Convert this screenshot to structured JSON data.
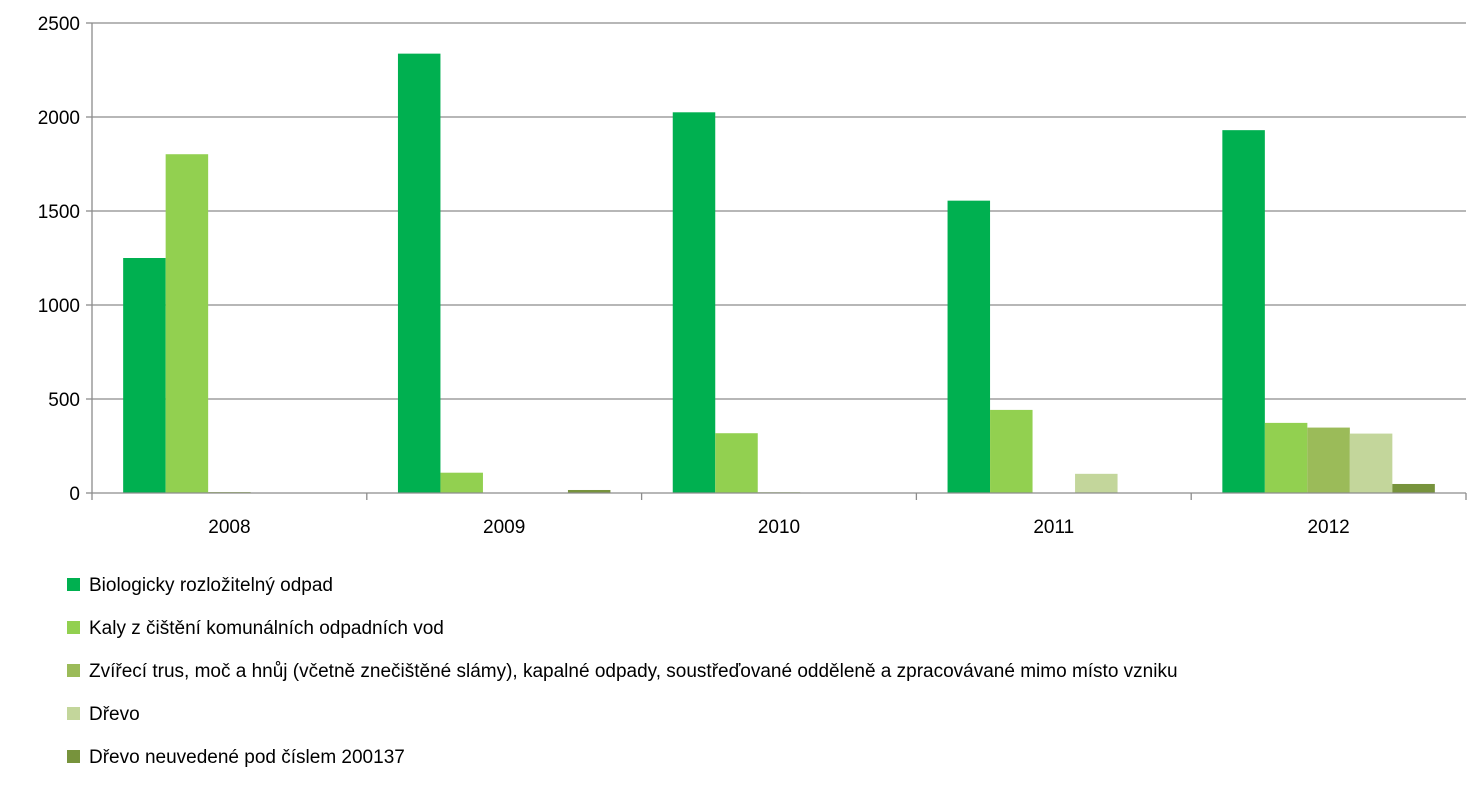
{
  "chart_data": {
    "type": "bar",
    "categories": [
      "2008",
      "2009",
      "2010",
      "2011",
      "2012"
    ],
    "series": [
      {
        "name": "Biologicky rozložitelný odpad",
        "color": "#00b050",
        "values": [
          1250,
          2337,
          2025,
          1555,
          1930
        ]
      },
      {
        "name": "Kaly z čištění komunálních odpadních vod",
        "color": "#92d050",
        "values": [
          1802,
          108,
          318,
          442,
          373
        ]
      },
      {
        "name": "Zvířecí trus, moč a hnůj (včetně znečištěné slámy), kapalné odpady, soustřeďované odděleně a zpracovávané mimo místo vzniku",
        "color": "#9bbb59",
        "values": [
          5,
          0,
          4,
          0,
          348
        ]
      },
      {
        "name": "Dřevo",
        "color": "#c3d69b",
        "values": [
          0,
          0,
          0,
          102,
          316
        ]
      },
      {
        "name": "Dřevo neuvedené pod číslem 200137",
        "color": "#77933c",
        "values": [
          0,
          16,
          0,
          0,
          48
        ]
      }
    ],
    "ylim": [
      0,
      2500
    ],
    "yticks": [
      "0",
      "500",
      "1000",
      "1500",
      "2000",
      "2500"
    ],
    "grid": true,
    "legend_position": "bottom"
  }
}
